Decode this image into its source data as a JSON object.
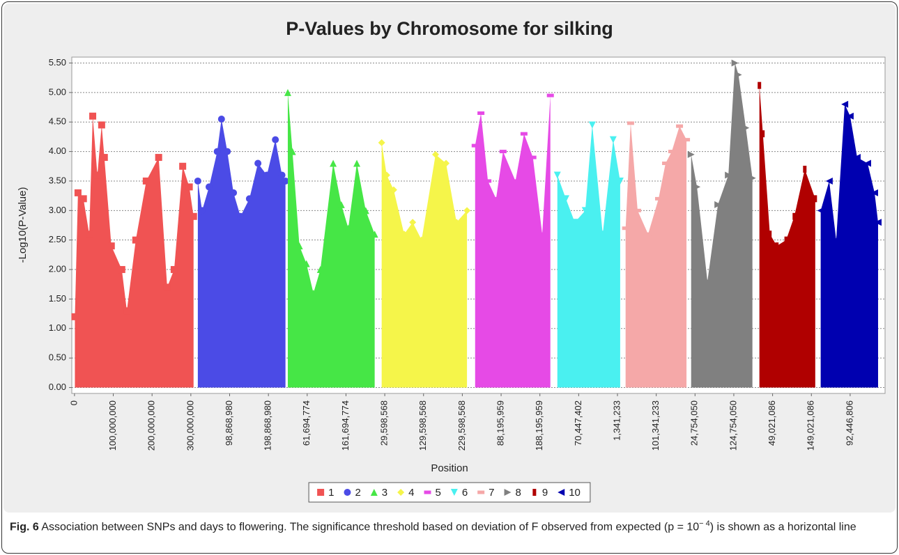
{
  "chart_data": {
    "type": "manhattan",
    "title": "P-Values by Chromosome for silking",
    "xlabel": "Position",
    "ylabel": "-Log10(P-Value)",
    "xlim": [
      -7000000,
      2090000000
    ],
    "ylim": [
      -0.1,
      5.6
    ],
    "xticks": [
      {
        "value": 0,
        "label": "0"
      },
      {
        "value": 100000000,
        "label": "100,000,000"
      },
      {
        "value": 200000000,
        "label": "200,000,000"
      },
      {
        "value": 300000000,
        "label": "300,000,000"
      },
      {
        "value": 400000000,
        "label": "98,868,980"
      },
      {
        "value": 500000000,
        "label": "198,868,980"
      },
      {
        "value": 600000000,
        "label": "61,694,774"
      },
      {
        "value": 700000000,
        "label": "161,694,774"
      },
      {
        "value": 800000000,
        "label": "29,598,568"
      },
      {
        "value": 900000000,
        "label": "129,598,568"
      },
      {
        "value": 1000000000,
        "label": "229,598,568"
      },
      {
        "value": 1100000000,
        "label": "88,195,959"
      },
      {
        "value": 1200000000,
        "label": "188,195,959"
      },
      {
        "value": 1300000000,
        "label": "70,447,402"
      },
      {
        "value": 1400000000,
        "label": "1,341,233"
      },
      {
        "value": 1500000000,
        "label": "101,341,233"
      },
      {
        "value": 1600000000,
        "label": "24,754,050"
      },
      {
        "value": 1700000000,
        "label": "124,754,050"
      },
      {
        "value": 1800000000,
        "label": "49,021,086"
      },
      {
        "value": 1900000000,
        "label": "149,021,086"
      },
      {
        "value": 2000000000,
        "label": "92,446,806"
      }
    ],
    "yticks": [
      {
        "value": 0,
        "label": "0.00"
      },
      {
        "value": 0.5,
        "label": "0.50"
      },
      {
        "value": 1,
        "label": "1.00"
      },
      {
        "value": 1.5,
        "label": "1.50"
      },
      {
        "value": 2,
        "label": "2.00"
      },
      {
        "value": 2.5,
        "label": "2.50"
      },
      {
        "value": 3,
        "label": "3.00"
      },
      {
        "value": 3.5,
        "label": "3.50"
      },
      {
        "value": 4,
        "label": "4.00"
      },
      {
        "value": 4.5,
        "label": "4.50"
      },
      {
        "value": 5,
        "label": "5.00"
      },
      {
        "value": 5.5,
        "label": "5.50"
      }
    ],
    "grid": true,
    "legend": "bottom",
    "series": [
      {
        "name": "1",
        "color": "#f05353",
        "marker": "square",
        "x": [
          1000000,
          9000000,
          23000000,
          38000000,
          47000000,
          59000000,
          70000000,
          77000000,
          95000000,
          122000000,
          135000000,
          158000000,
          185000000,
          217000000,
          239000000,
          257000000,
          279000000,
          296000000,
          307000000
        ],
        "values": [
          1.2,
          3.3,
          3.2,
          2.6,
          4.6,
          3.6,
          4.45,
          3.9,
          2.4,
          2.0,
          1.3,
          2.5,
          3.5,
          3.9,
          1.7,
          2.0,
          3.75,
          3.4,
          2.9
        ]
      },
      {
        "name": "2",
        "color": "#4b4be6",
        "marker": "circle",
        "x": [
          318000000,
          329000000,
          347000000,
          368000000,
          379000000,
          394000000,
          410000000,
          428000000,
          451000000,
          473000000,
          496000000,
          518000000,
          535000000,
          544000000
        ],
        "values": [
          3.5,
          3.0,
          3.4,
          4.0,
          4.55,
          4.0,
          3.3,
          2.9,
          3.2,
          3.8,
          3.6,
          4.2,
          3.6,
          3.5
        ]
      },
      {
        "name": "3",
        "color": "#46e646",
        "marker": "triangle-up",
        "x": [
          550000000,
          562000000,
          580000000,
          598000000,
          616000000,
          634000000,
          667000000,
          688000000,
          706000000,
          728000000,
          751000000,
          774000000
        ],
        "values": [
          5.0,
          4.0,
          2.4,
          2.1,
          1.6,
          2.0,
          3.8,
          3.1,
          2.7,
          3.8,
          3.0,
          2.6
        ]
      },
      {
        "name": "4",
        "color": "#f5f54a",
        "marker": "diamond",
        "x": [
          792000000,
          805000000,
          823000000,
          850000000,
          872000000,
          895000000,
          931000000,
          958000000,
          985000000,
          1012000000
        ],
        "values": [
          4.15,
          3.6,
          3.35,
          2.6,
          2.8,
          2.5,
          3.95,
          3.8,
          2.8,
          3.0
        ]
      },
      {
        "name": "5",
        "color": "#e64ae6",
        "marker": "dash",
        "x": [
          1033000000,
          1048000000,
          1066000000,
          1087000000,
          1105000000,
          1137000000,
          1159000000,
          1182000000,
          1206000000,
          1227000000
        ],
        "values": [
          4.1,
          4.65,
          3.5,
          3.2,
          4.0,
          3.5,
          4.3,
          3.9,
          2.6,
          4.95
        ]
      },
      {
        "name": "6",
        "color": "#4af0f0",
        "marker": "triangle-down",
        "x": [
          1245000000,
          1267000000,
          1290000000,
          1317000000,
          1335000000,
          1362000000,
          1389000000,
          1407000000
        ],
        "values": [
          3.6,
          3.2,
          2.8,
          3.0,
          4.45,
          2.6,
          4.2,
          3.5
        ]
      },
      {
        "name": "7",
        "color": "#f5a8a8",
        "marker": "dash",
        "x": [
          1421000000,
          1434000000,
          1452000000,
          1479000000,
          1506000000,
          1524000000,
          1540000000,
          1560000000,
          1578000000
        ],
        "values": [
          2.7,
          4.48,
          3.0,
          2.6,
          3.2,
          3.8,
          4.0,
          4.43,
          4.2
        ]
      },
      {
        "name": "8",
        "color": "#808080",
        "marker": "triangle-right",
        "x": [
          1590000000,
          1605000000,
          1632000000,
          1659000000,
          1686000000,
          1703000000,
          1712000000,
          1731000000,
          1748000000
        ],
        "values": [
          3.95,
          3.4,
          1.8,
          3.1,
          3.6,
          5.5,
          5.3,
          4.4,
          3.55
        ]
      },
      {
        "name": "9",
        "color": "#b00000",
        "marker": "bar",
        "x": [
          1766000000,
          1775000000,
          1793000000,
          1811000000,
          1835000000,
          1856000000,
          1883000000,
          1910000000
        ],
        "values": [
          5.12,
          4.3,
          2.6,
          2.4,
          2.5,
          2.9,
          3.7,
          3.2
        ]
      },
      {
        "name": "10",
        "color": "#0000b0",
        "marker": "triangle-left",
        "x": [
          1924000000,
          1946000000,
          1964000000,
          1986000000,
          2000000000,
          2018000000,
          2045000000,
          2063000000,
          2072000000
        ],
        "values": [
          3.0,
          3.5,
          2.5,
          4.8,
          4.6,
          3.9,
          3.8,
          3.3,
          2.8
        ]
      }
    ]
  },
  "caption": {
    "label": "Fig. 6",
    "text": "Association between SNPs and days to flowering. The significance threshold based on deviation of F observed from expected (p = 10",
    "superscript": "− 4",
    "text_after": ") is shown as a horizontal line"
  }
}
